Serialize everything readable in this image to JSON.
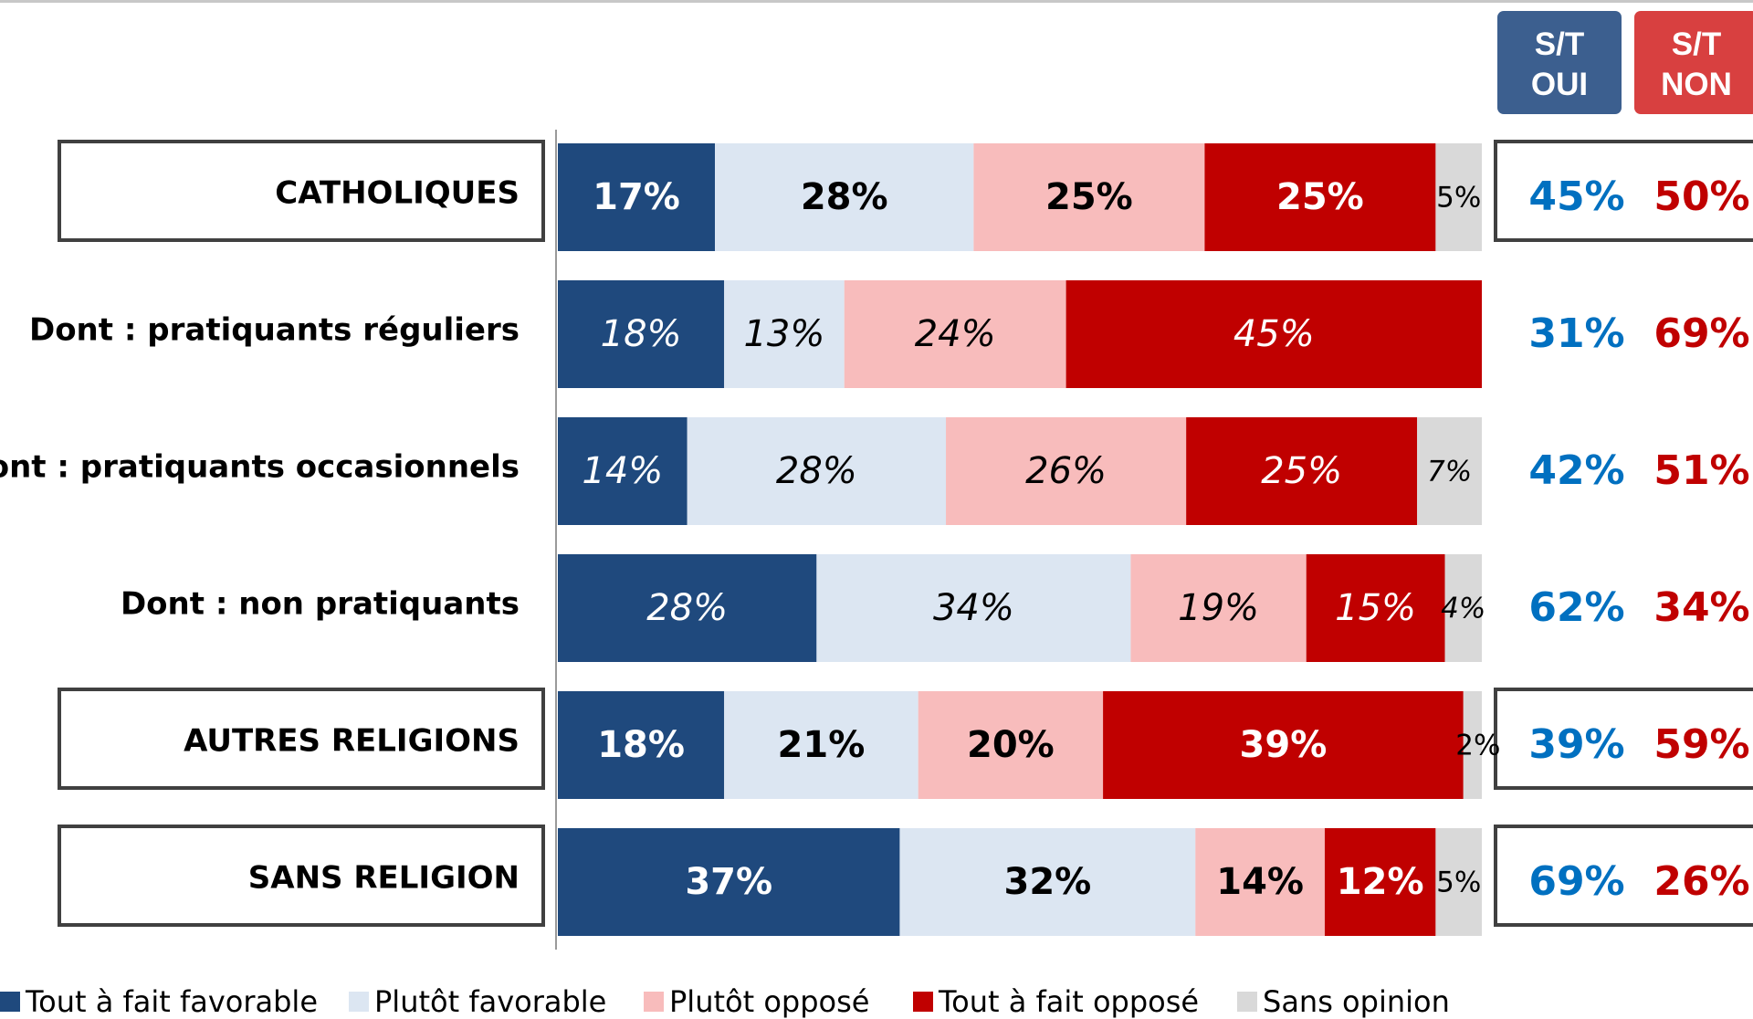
{
  "colors": {
    "tout_favorable": "#1f497d",
    "plutot_favorable": "#dce6f2",
    "plutot_oppose": "#f8bcbc",
    "tout_oppose": "#c00000",
    "sans_opinion": "#d9d9d9",
    "oui_text": "#0070c0",
    "non_text": "#c00000",
    "oui_header": "#3c5f8f",
    "non_header": "#d84040"
  },
  "headers": {
    "oui": [
      "S/T",
      "OUI"
    ],
    "non": [
      "S/T",
      "NON"
    ]
  },
  "chart_data": {
    "type": "bar",
    "orientation": "horizontal",
    "stacked": true,
    "unit": "%",
    "xlim": [
      0,
      100
    ],
    "legend": "bottom",
    "grid": false,
    "series": [
      {
        "key": "tout_favorable",
        "name": "Tout à fait favorable",
        "values": [
          17,
          18,
          14,
          28,
          18,
          37
        ]
      },
      {
        "key": "plutot_favorable",
        "name": "Plutôt favorable",
        "values": [
          28,
          13,
          28,
          34,
          21,
          32
        ]
      },
      {
        "key": "plutot_oppose",
        "name": "Plutôt opposé",
        "values": [
          25,
          24,
          26,
          19,
          20,
          14
        ]
      },
      {
        "key": "tout_oppose",
        "name": "Tout à fait opposé",
        "values": [
          25,
          45,
          25,
          15,
          39,
          12
        ]
      },
      {
        "key": "sans_opinion",
        "name": "Sans opinion",
        "values": [
          5,
          0,
          7,
          4,
          2,
          5
        ]
      }
    ],
    "rows": [
      {
        "label": "CATHOLIQUES",
        "boxed": true,
        "italic": false,
        "labels": [
          "17%",
          "28%",
          "25%",
          "25%",
          "5%"
        ],
        "st_oui": "45%",
        "st_non": "50%"
      },
      {
        "label": "Dont : pratiquants réguliers",
        "boxed": false,
        "italic": true,
        "labels": [
          "18%",
          "13%",
          "24%",
          "45%",
          ""
        ],
        "st_oui": "31%",
        "st_non": "69%"
      },
      {
        "label": "Dont : pratiquants occasionnels",
        "boxed": false,
        "italic": true,
        "labels": [
          "14%",
          "28%",
          "26%",
          "25%",
          "7%"
        ],
        "st_oui": "42%",
        "st_non": "51%"
      },
      {
        "label": "Dont : non pratiquants",
        "boxed": false,
        "italic": true,
        "labels": [
          "28%",
          "34%",
          "19%",
          "15%",
          "4%"
        ],
        "st_oui": "62%",
        "st_non": "34%"
      },
      {
        "label": "AUTRES RELIGIONS",
        "boxed": true,
        "italic": false,
        "labels": [
          "18%",
          "21%",
          "20%",
          "39%",
          "2%"
        ],
        "st_oui": "39%",
        "st_non": "59%"
      },
      {
        "label": "SANS RELIGION",
        "boxed": true,
        "italic": false,
        "labels": [
          "37%",
          "32%",
          "14%",
          "12%",
          "5%"
        ],
        "st_oui": "69%",
        "st_non": "26%"
      }
    ]
  }
}
